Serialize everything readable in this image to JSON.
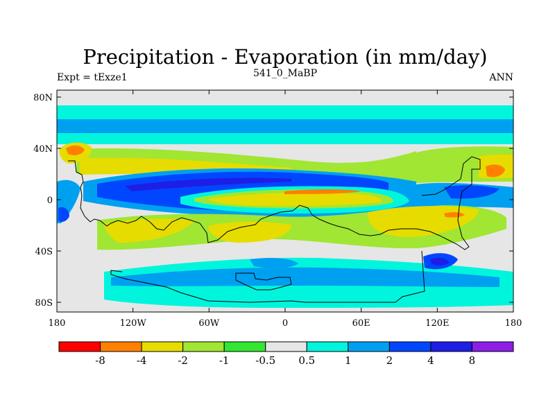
{
  "chart_data": {
    "type": "heatmap",
    "title": "Precipitation - Evaporation (in mm/day)",
    "subtitle_left": "Expt = tExze1",
    "subtitle_center": "541_0_MaBP",
    "subtitle_right": "ANN",
    "x_ticks": [
      "180",
      "120W",
      "60W",
      "0",
      "60E",
      "120E",
      "180"
    ],
    "x_range": [
      -180,
      180
    ],
    "y_ticks": [
      "80N",
      "40N",
      "0",
      "40S",
      "80S"
    ],
    "y_range": [
      -90,
      90
    ],
    "colorbar": {
      "colors": [
        "#ff0000",
        "#ff8000",
        "#e6dc00",
        "#a0e632",
        "#32e632",
        "#e6e6e6",
        "#00f5dc",
        "#00a0f0",
        "#0046ff",
        "#1e1ee6",
        "#8c1ee6"
      ],
      "labels": [
        "-8",
        "-4",
        "-2",
        "-1",
        "-0.5",
        "0.5",
        "1",
        "2",
        "4",
        "8"
      ],
      "levels": [
        -8,
        -4,
        -2,
        -1,
        -0.5,
        0.5,
        1,
        2,
        4,
        8
      ]
    }
  }
}
